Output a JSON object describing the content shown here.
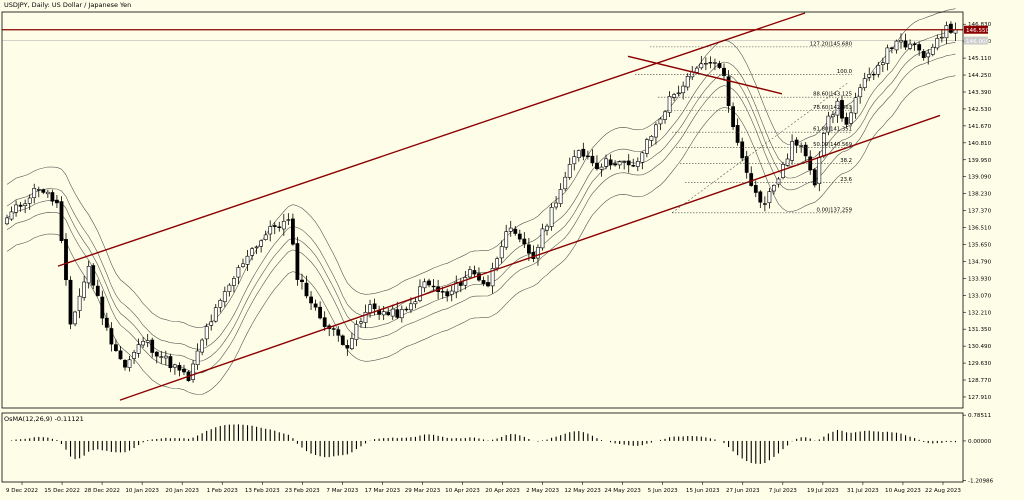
{
  "chart_data": {
    "type": "candlestick",
    "title": "USDJPY, Daily: US Dollar / Japanese Yen",
    "price_axis": {
      "ticks": [
        "146.830",
        "145.970",
        "145.110",
        "144.250",
        "143.390",
        "142.530",
        "141.670",
        "140.810",
        "139.950",
        "139.090",
        "138.230",
        "137.370",
        "136.510",
        "135.650",
        "134.790",
        "133.930",
        "133.070",
        "132.210",
        "131.350",
        "130.490",
        "129.630",
        "128.770",
        "127.910"
      ],
      "ylim": [
        127.35,
        147.45
      ]
    },
    "price_labels": {
      "current": "146.550",
      "secondary": "146.000"
    },
    "date_axis": [
      "9 Dec 2022",
      "15 Dec 2022",
      "28 Dec 2022",
      "10 Jan 2023",
      "20 Jan 2023",
      "1 Feb 2023",
      "13 Feb 2023",
      "23 Feb 2023",
      "7 Mar 2023",
      "17 Mar 2023",
      "29 Mar 2023",
      "10 Apr 2023",
      "20 Apr 2023",
      "2 May 2023",
      "12 May 2023",
      "24 May 2023",
      "5 Jun 2023",
      "15 Jun 2023",
      "27 Jun 2023",
      "7 Jul 2023",
      "19 Jul 2023",
      "31 Jul 2023",
      "10 Aug 2023",
      "22 Aug 2023"
    ],
    "fibonacci_labels": [
      "127.20|145.680",
      "100.0",
      "88.60|143.125",
      "78.60|142.463",
      "61.80|141.351",
      "50.00|140.569",
      "38.2",
      "23.6",
      "0.00|137.259"
    ],
    "price_waypoints": [
      {
        "i": 0,
        "v": 137.0
      },
      {
        "i": 7,
        "v": 138.6
      },
      {
        "i": 11,
        "v": 137.7
      },
      {
        "i": 14,
        "v": 131.6
      },
      {
        "i": 18,
        "v": 134.5
      },
      {
        "i": 22,
        "v": 131.3
      },
      {
        "i": 26,
        "v": 129.4
      },
      {
        "i": 30,
        "v": 130.8
      },
      {
        "i": 37,
        "v": 129.4
      },
      {
        "i": 40,
        "v": 128.8
      },
      {
        "i": 44,
        "v": 131.4
      },
      {
        "i": 48,
        "v": 133.1
      },
      {
        "i": 53,
        "v": 135.2
      },
      {
        "i": 59,
        "v": 136.6
      },
      {
        "i": 62,
        "v": 136.8
      },
      {
        "i": 64,
        "v": 134.1
      },
      {
        "i": 68,
        "v": 132.3
      },
      {
        "i": 71,
        "v": 131.4
      },
      {
        "i": 75,
        "v": 130.6
      },
      {
        "i": 80,
        "v": 132.5
      },
      {
        "i": 84,
        "v": 132.1
      },
      {
        "i": 88,
        "v": 132.2
      },
      {
        "i": 92,
        "v": 133.7
      },
      {
        "i": 97,
        "v": 133.0
      },
      {
        "i": 102,
        "v": 134.3
      },
      {
        "i": 106,
        "v": 133.6
      },
      {
        "i": 110,
        "v": 136.5
      },
      {
        "i": 116,
        "v": 135.0
      },
      {
        "i": 121,
        "v": 138.0
      },
      {
        "i": 126,
        "v": 140.5
      },
      {
        "i": 130,
        "v": 139.7
      },
      {
        "i": 134,
        "v": 139.9
      },
      {
        "i": 138,
        "v": 139.5
      },
      {
        "i": 142,
        "v": 141.2
      },
      {
        "i": 146,
        "v": 143.0
      },
      {
        "i": 152,
        "v": 144.5
      },
      {
        "i": 155,
        "v": 145.0
      },
      {
        "i": 158,
        "v": 144.3
      },
      {
        "i": 160,
        "v": 141.5
      },
      {
        "i": 163,
        "v": 139.5
      },
      {
        "i": 165,
        "v": 138.2
      },
      {
        "i": 167,
        "v": 137.7
      },
      {
        "i": 169,
        "v": 138.7
      },
      {
        "i": 171,
        "v": 139.5
      },
      {
        "i": 173,
        "v": 140.8
      },
      {
        "i": 176,
        "v": 140.3
      },
      {
        "i": 178,
        "v": 138.9
      },
      {
        "i": 180,
        "v": 141.5
      },
      {
        "i": 183,
        "v": 142.8
      },
      {
        "i": 185,
        "v": 141.7
      },
      {
        "i": 188,
        "v": 143.5
      },
      {
        "i": 191,
        "v": 144.5
      },
      {
        "i": 194,
        "v": 145.4
      },
      {
        "i": 196,
        "v": 146.1
      },
      {
        "i": 198,
        "v": 145.5
      },
      {
        "i": 200,
        "v": 145.9
      },
      {
        "i": 202,
        "v": 144.9
      },
      {
        "i": 205,
        "v": 146.2
      },
      {
        "i": 207,
        "v": 146.55
      }
    ],
    "oscillator": {
      "label": "OsMA(12,26,9) -0.11121",
      "ticks": [
        "0.78511",
        "0.00000",
        "-1.20986"
      ],
      "ylim": [
        -1.25,
        0.85
      ]
    }
  }
}
